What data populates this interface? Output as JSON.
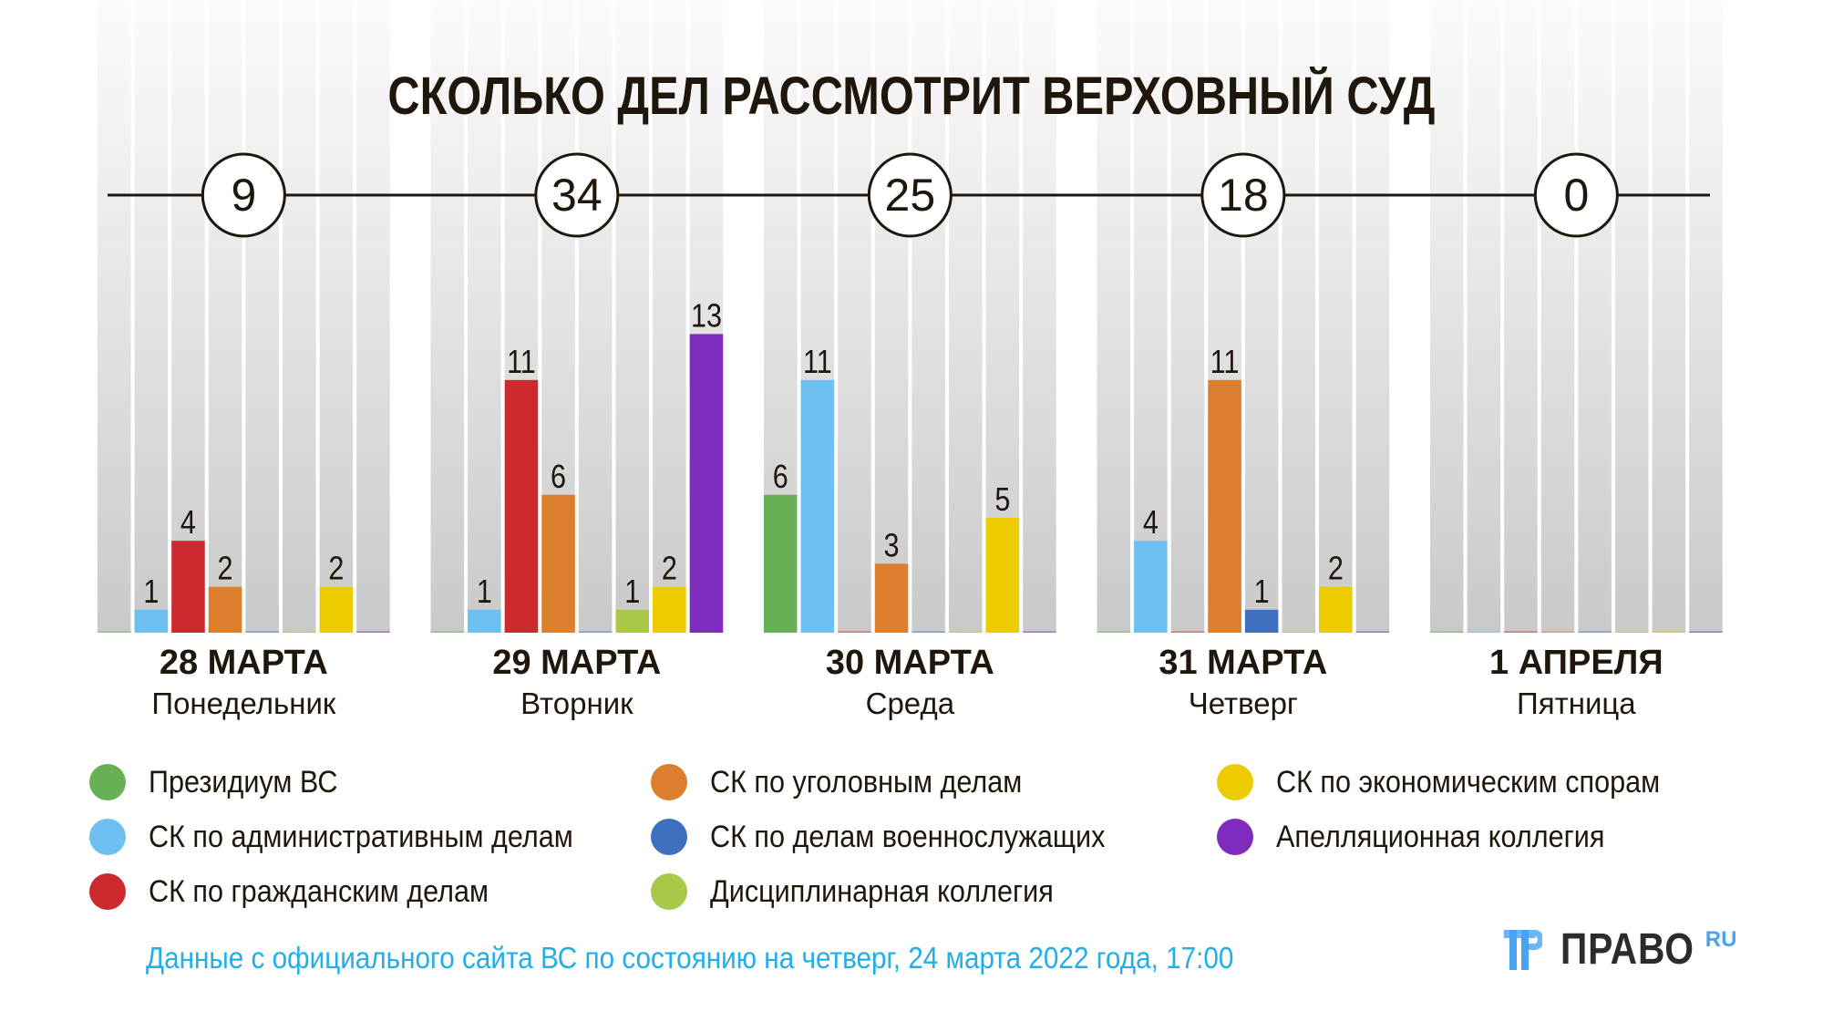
{
  "title": "СКОЛЬКО ДЕЛ РАССМОТРИТ ВЕРХОВНЫЙ СУД",
  "chart_data": {
    "type": "bar",
    "title": "СКОЛЬКО ДЕЛ РАССМОТРИТ ВЕРХОВНЫЙ СУД",
    "xlabel": "",
    "ylabel": "",
    "grid": false,
    "legend_position": "bottom",
    "categories": [
      {
        "date": "28 МАРТА",
        "weekday": "Понедельник",
        "total": "9"
      },
      {
        "date": "29 МАРТА",
        "weekday": "Вторник",
        "total": "34"
      },
      {
        "date": "30 МАРТА",
        "weekday": "Среда",
        "total": "25"
      },
      {
        "date": "31 МАРТА",
        "weekday": "Четверг",
        "total": "18"
      },
      {
        "date": "1 АПРЕЛЯ",
        "weekday": "Пятница",
        "total": "0"
      }
    ],
    "series": [
      {
        "name": "Президиум ВС",
        "color": "#67b055",
        "values": [
          0,
          0,
          6,
          0,
          0
        ]
      },
      {
        "name": "СК по административным делам",
        "color": "#6ec0f0",
        "values": [
          1,
          1,
          11,
          4,
          0
        ]
      },
      {
        "name": "СК по гражданским делам",
        "color": "#cc2a2f",
        "values": [
          4,
          11,
          0,
          0,
          0
        ]
      },
      {
        "name": "СК по уголовным делам",
        "color": "#dc7f2d",
        "values": [
          2,
          6,
          3,
          11,
          0
        ]
      },
      {
        "name": "СК по делам военнослужащих",
        "color": "#3f70c0",
        "values": [
          0,
          0,
          0,
          1,
          0
        ]
      },
      {
        "name": "Дисциплинарная коллегия",
        "color": "#a8c84a",
        "values": [
          0,
          1,
          0,
          0,
          0
        ]
      },
      {
        "name": "СК по экономическим спорам",
        "color": "#eccb00",
        "values": [
          2,
          2,
          5,
          2,
          0
        ]
      },
      {
        "name": "Апелляционная коллегия",
        "color": "#7f2bc0",
        "values": [
          0,
          13,
          0,
          0,
          0
        ]
      }
    ],
    "ylim": [
      0,
      13
    ]
  },
  "footer": {
    "note": "Данные с официального сайта ВС по состоянию на четверг, 24 марта 2022 года, 17:00"
  },
  "logo": {
    "word": "ПРАВО",
    "suffix": "RU",
    "icon": "pravo-logo-mark-icon"
  }
}
